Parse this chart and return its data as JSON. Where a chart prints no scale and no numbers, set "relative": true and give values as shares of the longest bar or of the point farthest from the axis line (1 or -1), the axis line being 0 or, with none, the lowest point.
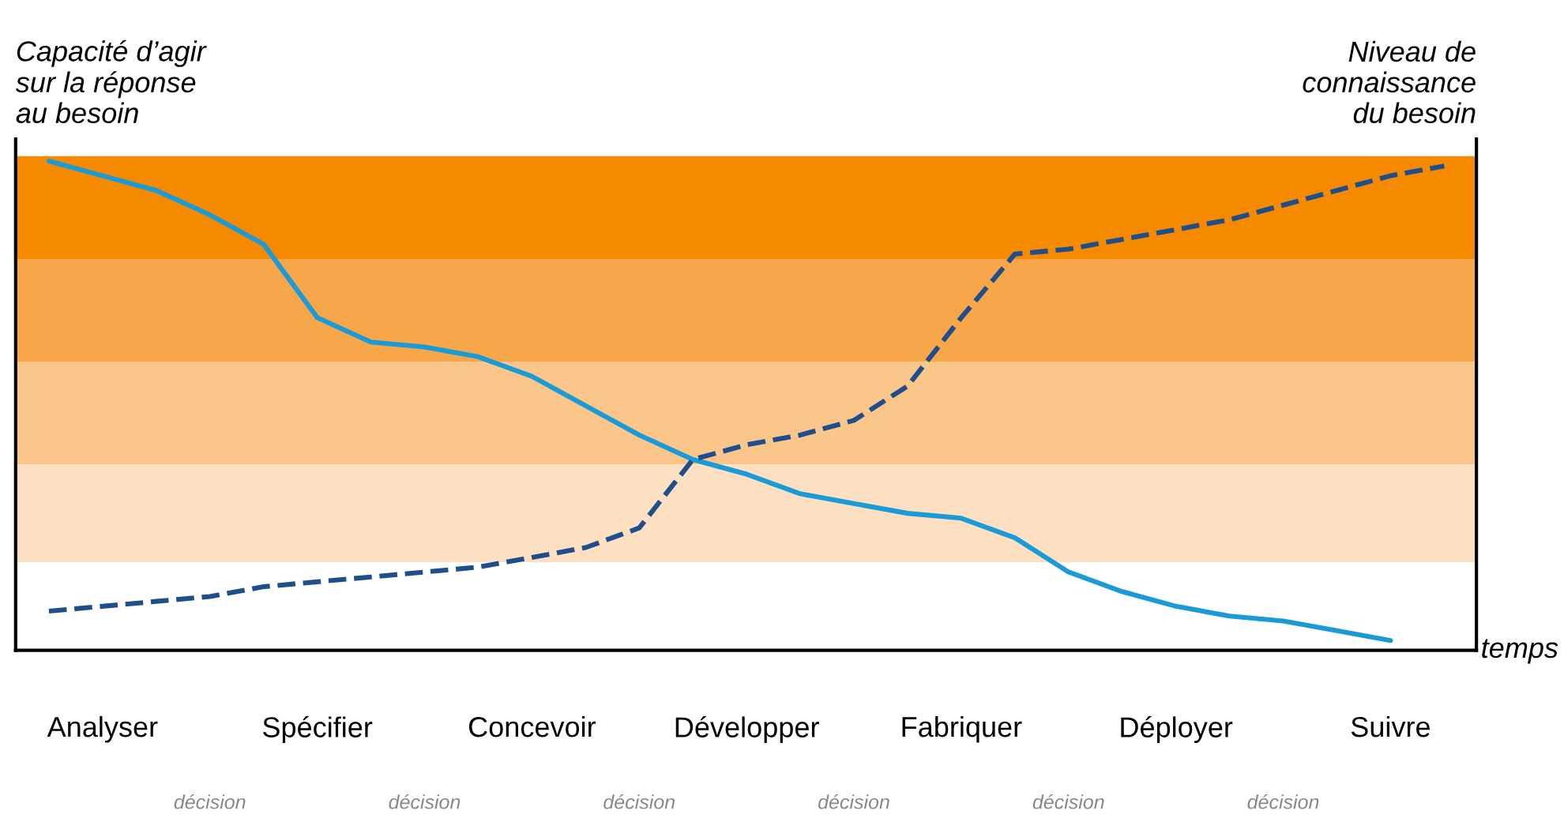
{
  "chart_data": {
    "type": "line",
    "relative": true,
    "ylabel": "Capacité d’agir\nsur la réponse\nau besoin",
    "y2label": "Niveau de\nconnaissance\ndu besoin",
    "xlabel": "temps",
    "categories": [
      null,
      "Analyser",
      null,
      null,
      null,
      "Spécifier",
      null,
      null,
      null,
      "Concevoir",
      null,
      null,
      null,
      "Développer",
      null,
      null,
      null,
      "Fabriquer",
      null,
      null,
      null,
      "Déployer",
      null,
      null,
      null,
      "Suivre",
      null
    ],
    "series": [
      {
        "color": "#1a9ad6",
        "line_style": "solid",
        "values": [
          1.0,
          0.97,
          0.94,
          0.89,
          0.83,
          0.68,
          0.63,
          0.62,
          0.6,
          0.56,
          0.5,
          0.44,
          0.39,
          0.36,
          0.32,
          0.3,
          0.28,
          0.27,
          0.23,
          0.16,
          0.12,
          0.09,
          0.07,
          0.06,
          0.04,
          0.02,
          null
        ]
      },
      {
        "color": "#1f4e8c",
        "line_style": "dashed",
        "axis": "y2",
        "values": [
          0.08,
          0.09,
          0.1,
          0.11,
          0.13,
          0.14,
          0.15,
          0.16,
          0.17,
          0.19,
          0.21,
          0.25,
          0.39,
          0.42,
          0.44,
          0.47,
          0.54,
          0.68,
          0.81,
          0.82,
          0.84,
          0.86,
          0.88,
          0.91,
          0.94,
          0.97,
          0.99
        ]
      }
    ],
    "bands": [
      {
        "axis": "y",
        "from": 0.8,
        "to": 1.01,
        "color": "#f58a00"
      },
      {
        "axis": "y",
        "from": 0.59,
        "to": 0.8,
        "color": "#f7a74a"
      },
      {
        "axis": "y",
        "from": 0.38,
        "to": 0.59,
        "color": "#fac68a"
      },
      {
        "axis": "y",
        "from": 0.18,
        "to": 0.38,
        "color": "#fde0c2"
      }
    ],
    "annotations": [
      "décision",
      "décision",
      "décision",
      "décision",
      "décision",
      "décision"
    ],
    "grid": false,
    "legend": false
  }
}
